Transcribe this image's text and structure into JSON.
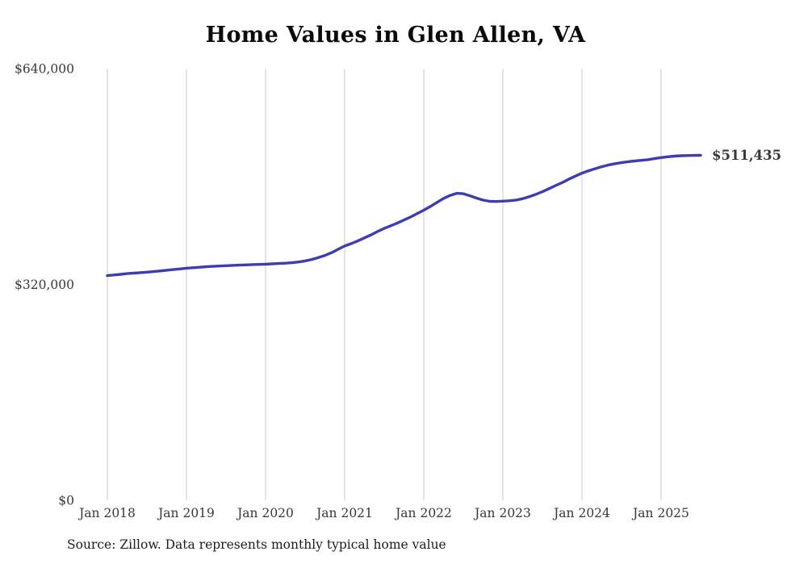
{
  "page": {
    "background": "#ffffff"
  },
  "chart_data": {
    "type": "line",
    "title": "Home Values in Glen Allen, VA",
    "xlabel": "",
    "ylabel": "",
    "ylim": [
      0,
      640000
    ],
    "grid": "vertical-only",
    "legend": "none",
    "x_start_month": "2018-01",
    "x_end_month": "2025-07",
    "x_ticks": [
      {
        "label": "Jan 2018",
        "month_index": 0
      },
      {
        "label": "Jan 2019",
        "month_index": 12
      },
      {
        "label": "Jan 2020",
        "month_index": 24
      },
      {
        "label": "Jan 2021",
        "month_index": 36
      },
      {
        "label": "Jan 2022",
        "month_index": 48
      },
      {
        "label": "Jan 2023",
        "month_index": 60
      },
      {
        "label": "Jan 2024",
        "month_index": 72
      },
      {
        "label": "Jan 2025",
        "month_index": 84
      }
    ],
    "y_ticks": [
      {
        "label": "$0",
        "value": 0
      },
      {
        "label": "$320,000",
        "value": 320000
      },
      {
        "label": "$640,000",
        "value": 640000
      }
    ],
    "series": [
      {
        "name": "Monthly typical home value",
        "color": "#3d3db2",
        "final_value": 511435,
        "values": [
          333000,
          334000,
          335000,
          336000,
          336800,
          337500,
          338200,
          339000,
          340000,
          341000,
          342000,
          343000,
          344000,
          344800,
          345500,
          346200,
          346800,
          347300,
          347800,
          348200,
          348600,
          349000,
          349400,
          349700,
          350000,
          350500,
          351000,
          351500,
          352200,
          353200,
          354800,
          357000,
          359800,
          363000,
          367000,
          372000,
          377000,
          380500,
          384500,
          389000,
          393500,
          398500,
          403000,
          407000,
          411000,
          415500,
          420000,
          425000,
          430000,
          435500,
          441500,
          447500,
          452000,
          455000,
          454500,
          451500,
          448000,
          445000,
          443200,
          443000,
          443500,
          444000,
          445000,
          447000,
          450000,
          453500,
          457500,
          462000,
          466500,
          471000,
          476000,
          480500,
          485000,
          488500,
          491500,
          494500,
          497000,
          499000,
          500500,
          502000,
          503000,
          504000,
          505000,
          506500,
          508000,
          509200,
          510200,
          510800,
          511100,
          511300,
          511435
        ]
      }
    ]
  },
  "annotations": {
    "end_label": "$511,435"
  },
  "colors": {
    "line": "#3d3db2",
    "gridline": "#c9c9c9",
    "tick_text": "#383838"
  },
  "source": {
    "text": "Source: Zillow. Data represents monthly typical home value"
  }
}
